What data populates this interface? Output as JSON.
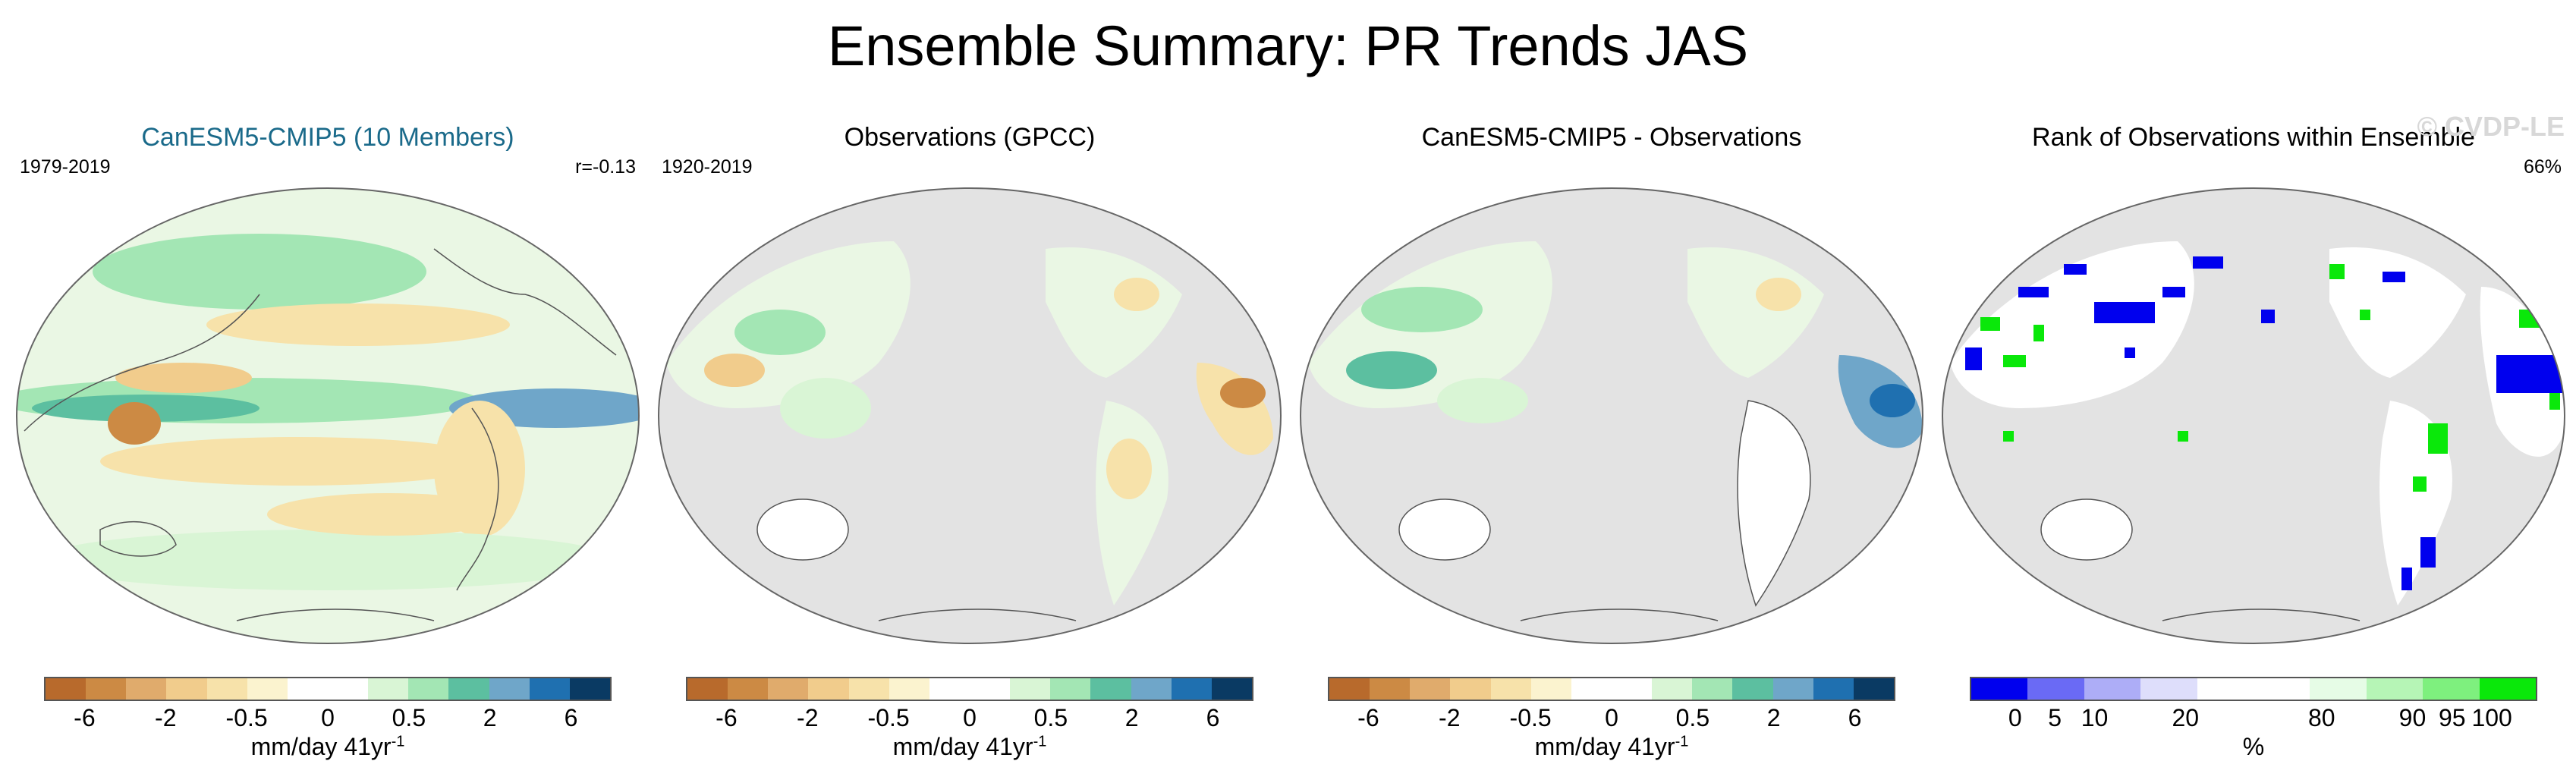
{
  "title": "Ensemble Summary: PR Trends JAS",
  "panels": [
    {
      "title": "CanESM5-CMIP5 (10 Members)",
      "left_label": "1979-2019",
      "right_label": "r=-0.13",
      "watermark": ""
    },
    {
      "title": "Observations (GPCC)",
      "left_label": "1920-2019",
      "right_label": "",
      "watermark": ""
    },
    {
      "title": "CanESM5-CMIP5 - Observations",
      "left_label": "",
      "right_label": "",
      "watermark": ""
    },
    {
      "title": "Rank of Observations within Ensemble",
      "left_label": "",
      "right_label": "66%",
      "watermark": "© CVDP-LE"
    }
  ],
  "trend_colorbar": {
    "colors": [
      "#b86a2c",
      "#cc8a44",
      "#e0ab6c",
      "#f1cc8c",
      "#f7e2aa",
      "#fbf3cf",
      "#ffffff",
      "#ffffff",
      "#d9f5d5",
      "#a3e6b4",
      "#5cbfa0",
      "#6fa6c9",
      "#1f70b0",
      "#0a3a63"
    ],
    "ticks": [
      "-6",
      "-2",
      "-0.5",
      "0",
      "0.5",
      "2",
      "6"
    ],
    "unit_text": "mm/day 41yr",
    "unit_exp": "-1"
  },
  "rank_colorbar": {
    "colors": [
      "#0000ee",
      "#6a6af5",
      "#adadf7",
      "#dedefb",
      "#ffffff",
      "#ffffff",
      "#e6fce6",
      "#b6f5b6",
      "#7ef07e",
      "#0ae80a"
    ],
    "ticks": [
      "0",
      "5",
      "10",
      "20",
      "80",
      "90",
      "95",
      "100"
    ],
    "unit_text": "%"
  }
}
